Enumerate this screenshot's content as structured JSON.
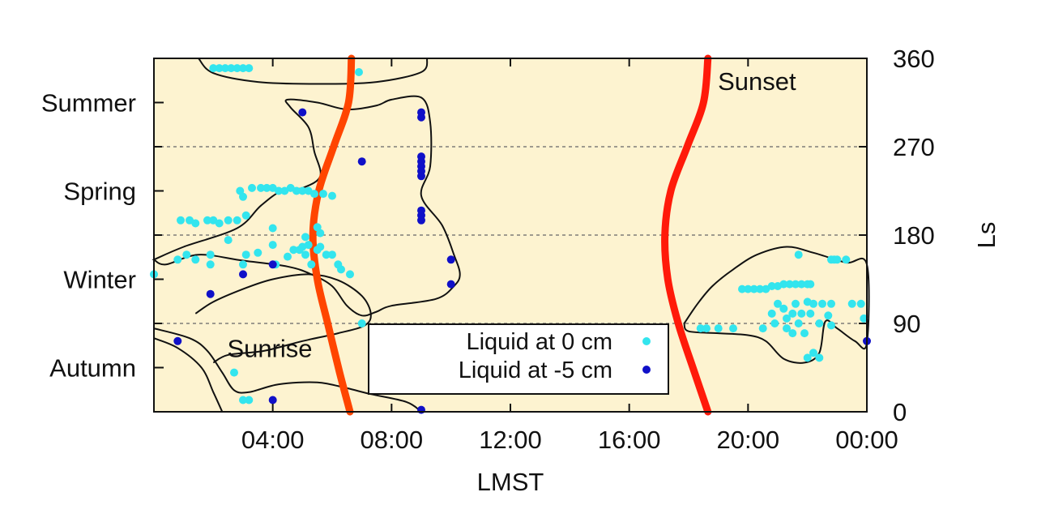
{
  "chart_data": {
    "type": "scatter",
    "xlabel": "LMST",
    "ylabel": "Ls",
    "xlim": [
      0,
      24
    ],
    "ylim": [
      0,
      360
    ],
    "x_ticks": [
      {
        "value": 4,
        "label": "04:00"
      },
      {
        "value": 8,
        "label": "08:00"
      },
      {
        "value": 12,
        "label": "12:00"
      },
      {
        "value": 16,
        "label": "16:00"
      },
      {
        "value": 20,
        "label": "20:00"
      },
      {
        "value": 24,
        "label": "00:00"
      }
    ],
    "y_ticks_right": [
      {
        "value": 0,
        "label": "0"
      },
      {
        "value": 90,
        "label": "90"
      },
      {
        "value": 180,
        "label": "180"
      },
      {
        "value": 270,
        "label": "270"
      },
      {
        "value": 360,
        "label": "360"
      }
    ],
    "season_labels": [
      {
        "ls": 45,
        "label": "Autumn"
      },
      {
        "ls": 135,
        "label": "Winter"
      },
      {
        "ls": 225,
        "label": "Spring"
      },
      {
        "ls": 315,
        "label": "Summer"
      }
    ],
    "grid": {
      "horizontal_dashed_at": [
        90,
        180,
        270
      ]
    },
    "background_color": "#fdf3d0",
    "annotations": [
      {
        "text": "Sunrise",
        "x": 3.9,
        "ls": 64
      },
      {
        "text": "Sunset",
        "x": 20.3,
        "ls": 336
      }
    ],
    "legend": {
      "position": "bottom-center",
      "entries": [
        {
          "label": "Liquid at  0 cm",
          "color": "#33e5ee"
        },
        {
          "label": "Liquid at -5 cm",
          "color": "#1010c8"
        }
      ]
    },
    "lines": [
      {
        "name": "sunrise",
        "color": "#ff4500",
        "points": [
          [
            6.6,
            0
          ],
          [
            6.25,
            40
          ],
          [
            5.85,
            90
          ],
          [
            5.5,
            135
          ],
          [
            5.35,
            180
          ],
          [
            5.55,
            225
          ],
          [
            6.05,
            270
          ],
          [
            6.55,
            315
          ],
          [
            6.65,
            360
          ]
        ]
      },
      {
        "name": "sunset",
        "color": "#ff1a0a",
        "points": [
          [
            18.65,
            0
          ],
          [
            18.2,
            40
          ],
          [
            17.65,
            90
          ],
          [
            17.3,
            135
          ],
          [
            17.2,
            180
          ],
          [
            17.4,
            225
          ],
          [
            17.95,
            270
          ],
          [
            18.5,
            315
          ],
          [
            18.65,
            360
          ]
        ]
      }
    ],
    "contours": [
      {
        "name": "top-region",
        "points": [
          [
            1.5,
            360
          ],
          [
            2.0,
            345
          ],
          [
            3.5,
            336
          ],
          [
            5.5,
            334
          ],
          [
            7.5,
            336
          ],
          [
            9.0,
            346
          ],
          [
            9.2,
            360
          ]
        ],
        "closed": false
      },
      {
        "name": "main-region",
        "closed": true,
        "points": [
          [
            0,
            155
          ],
          [
            1.0,
            168
          ],
          [
            2.8,
            187
          ],
          [
            3.6,
            210
          ],
          [
            4.3,
            225
          ],
          [
            5.0,
            228
          ],
          [
            5.6,
            240
          ],
          [
            5.4,
            265
          ],
          [
            5.2,
            290
          ],
          [
            4.6,
            310
          ],
          [
            4.5,
            318
          ],
          [
            5.5,
            315
          ],
          [
            6.5,
            308
          ],
          [
            7.5,
            312
          ],
          [
            8.0,
            318
          ],
          [
            9.0,
            320
          ],
          [
            9.3,
            295
          ],
          [
            9.3,
            250
          ],
          [
            9.0,
            220
          ],
          [
            9.7,
            190
          ],
          [
            10.1,
            160
          ],
          [
            10.3,
            140
          ],
          [
            10.1,
            128
          ],
          [
            9.5,
            115
          ],
          [
            8.0,
            108
          ],
          [
            7.5,
            102
          ],
          [
            7.0,
            98
          ],
          [
            6.5,
            108
          ],
          [
            6.0,
            128
          ],
          [
            5.3,
            140
          ],
          [
            4.5,
            148
          ],
          [
            3.0,
            154
          ],
          [
            1.5,
            160
          ],
          [
            0.4,
            150
          ],
          [
            0,
            155
          ]
        ]
      },
      {
        "name": "sunrise-region",
        "closed": false,
        "points": [
          [
            0,
            85
          ],
          [
            1.2,
            75
          ],
          [
            1.8,
            62
          ],
          [
            2.3,
            40
          ],
          [
            2.7,
            22
          ],
          [
            3.2,
            20
          ],
          [
            4.2,
            28
          ],
          [
            5.5,
            30
          ],
          [
            6.5,
            24
          ],
          [
            7.3,
            18
          ],
          [
            8.5,
            10
          ],
          [
            9.0,
            0
          ]
        ]
      },
      {
        "name": "sunrise-region-top",
        "closed": false,
        "points": [
          [
            1.4,
            100
          ],
          [
            2.0,
            112
          ],
          [
            3.0,
            125
          ],
          [
            4.0,
            135
          ],
          [
            5.2,
            140
          ],
          [
            6.2,
            134
          ],
          [
            7.0,
            118
          ],
          [
            7.3,
            100
          ],
          [
            7.1,
            88
          ],
          [
            6.2,
            80
          ],
          [
            5.0,
            72
          ],
          [
            3.7,
            62
          ],
          [
            2.5,
            58
          ],
          [
            2.0,
            50
          ]
        ]
      },
      {
        "name": "sunset-region",
        "closed": true,
        "points": [
          [
            17.85,
            90
          ],
          [
            18.3,
            110
          ],
          [
            18.8,
            128
          ],
          [
            19.5,
            145
          ],
          [
            20.3,
            160
          ],
          [
            21.3,
            168
          ],
          [
            22.2,
            162
          ],
          [
            23.3,
            152
          ],
          [
            24.0,
            150
          ],
          [
            24.0,
            70
          ],
          [
            23.6,
            72
          ],
          [
            23.0,
            85
          ],
          [
            22.6,
            92
          ],
          [
            22.4,
            60
          ],
          [
            21.9,
            50
          ],
          [
            21.2,
            54
          ],
          [
            20.6,
            72
          ],
          [
            20.0,
            78
          ],
          [
            19.0,
            80
          ],
          [
            18.0,
            82
          ],
          [
            17.85,
            90
          ]
        ]
      },
      {
        "name": "left-bottom-region",
        "closed": false,
        "points": [
          [
            0,
            75
          ],
          [
            0.8,
            65
          ],
          [
            1.6,
            45
          ],
          [
            2.0,
            20
          ],
          [
            2.3,
            0
          ]
        ]
      }
    ],
    "series": [
      {
        "name": "Liquid at  0 cm",
        "color": "#33e5ee",
        "points": [
          [
            2.0,
            350
          ],
          [
            2.2,
            350
          ],
          [
            2.4,
            350
          ],
          [
            2.6,
            350
          ],
          [
            2.8,
            350
          ],
          [
            3.0,
            350
          ],
          [
            3.2,
            350
          ],
          [
            6.9,
            346
          ],
          [
            2.9,
            225
          ],
          [
            3.0,
            219
          ],
          [
            3.3,
            228
          ],
          [
            3.6,
            228
          ],
          [
            3.8,
            228
          ],
          [
            4.0,
            228
          ],
          [
            4.2,
            225
          ],
          [
            4.4,
            225
          ],
          [
            4.6,
            228
          ],
          [
            4.8,
            225
          ],
          [
            5.0,
            225
          ],
          [
            5.2,
            225
          ],
          [
            5.4,
            222
          ],
          [
            5.7,
            222
          ],
          [
            6.0,
            220
          ],
          [
            0.9,
            195
          ],
          [
            1.2,
            195
          ],
          [
            1.4,
            192
          ],
          [
            1.8,
            195
          ],
          [
            2.0,
            195
          ],
          [
            2.2,
            192
          ],
          [
            2.5,
            195
          ],
          [
            2.8,
            195
          ],
          [
            3.1,
            200
          ],
          [
            4.0,
            187
          ],
          [
            5.1,
            178
          ],
          [
            5.5,
            188
          ],
          [
            5.6,
            182
          ],
          [
            0.8,
            155
          ],
          [
            1.1,
            160
          ],
          [
            1.4,
            155
          ],
          [
            1.9,
            160
          ],
          [
            1.9,
            150
          ],
          [
            2.5,
            175
          ],
          [
            3.0,
            150
          ],
          [
            3.1,
            160
          ],
          [
            3.5,
            162
          ],
          [
            4.0,
            170
          ],
          [
            4.1,
            150
          ],
          [
            4.5,
            158
          ],
          [
            4.7,
            165
          ],
          [
            4.9,
            165
          ],
          [
            5.0,
            168
          ],
          [
            5.1,
            160
          ],
          [
            5.2,
            170
          ],
          [
            5.3,
            150
          ],
          [
            5.5,
            165
          ],
          [
            5.6,
            168
          ],
          [
            5.8,
            160
          ],
          [
            6.0,
            160
          ],
          [
            6.2,
            150
          ],
          [
            6.3,
            145
          ],
          [
            6.6,
            140
          ],
          [
            0.0,
            140
          ],
          [
            7.0,
            90
          ],
          [
            2.7,
            40
          ],
          [
            3.2,
            12
          ],
          [
            3.0,
            12
          ],
          [
            18.4,
            85
          ],
          [
            18.6,
            85
          ],
          [
            19.0,
            85
          ],
          [
            19.5,
            85
          ],
          [
            19.8,
            125
          ],
          [
            20.0,
            125
          ],
          [
            20.2,
            125
          ],
          [
            20.4,
            125
          ],
          [
            20.6,
            125
          ],
          [
            20.8,
            128
          ],
          [
            21.0,
            128
          ],
          [
            21.2,
            130
          ],
          [
            21.4,
            130
          ],
          [
            21.6,
            130
          ],
          [
            21.8,
            130
          ],
          [
            22.0,
            130
          ],
          [
            22.1,
            130
          ],
          [
            21.7,
            160
          ],
          [
            22.8,
            155
          ],
          [
            22.9,
            155
          ],
          [
            23.0,
            155
          ],
          [
            23.3,
            155
          ],
          [
            20.5,
            85
          ],
          [
            20.8,
            100
          ],
          [
            20.9,
            90
          ],
          [
            21.0,
            110
          ],
          [
            21.2,
            105
          ],
          [
            21.3,
            95
          ],
          [
            21.3,
            85
          ],
          [
            21.5,
            80
          ],
          [
            21.5,
            100
          ],
          [
            21.6,
            110
          ],
          [
            21.7,
            90
          ],
          [
            21.8,
            100
          ],
          [
            21.9,
            80
          ],
          [
            22.0,
            112
          ],
          [
            22.1,
            100
          ],
          [
            22.2,
            110
          ],
          [
            22.2,
            60
          ],
          [
            22.4,
            55
          ],
          [
            22.4,
            90
          ],
          [
            22.5,
            110
          ],
          [
            22.7,
            98
          ],
          [
            22.8,
            88
          ],
          [
            22.8,
            110
          ],
          [
            22.0,
            55
          ],
          [
            23.5,
            110
          ],
          [
            23.8,
            110
          ],
          [
            23.9,
            95
          ]
        ]
      },
      {
        "name": "Liquid at -5 cm",
        "color": "#1010c8",
        "points": [
          [
            5.0,
            305
          ],
          [
            9.0,
            305
          ],
          [
            9.0,
            300
          ],
          [
            7.0,
            255
          ],
          [
            9.0,
            250
          ],
          [
            9.0,
            255
          ],
          [
            9.0,
            245
          ],
          [
            9.0,
            240
          ],
          [
            9.0,
            260
          ],
          [
            9.0,
            205
          ],
          [
            9.0,
            200
          ],
          [
            9.0,
            195
          ],
          [
            10.0,
            155
          ],
          [
            10.0,
            130
          ],
          [
            4.0,
            150
          ],
          [
            3.0,
            140
          ],
          [
            1.9,
            120
          ],
          [
            0.8,
            72
          ],
          [
            4.0,
            12
          ],
          [
            9.0,
            2
          ],
          [
            24.0,
            72
          ]
        ]
      }
    ]
  }
}
